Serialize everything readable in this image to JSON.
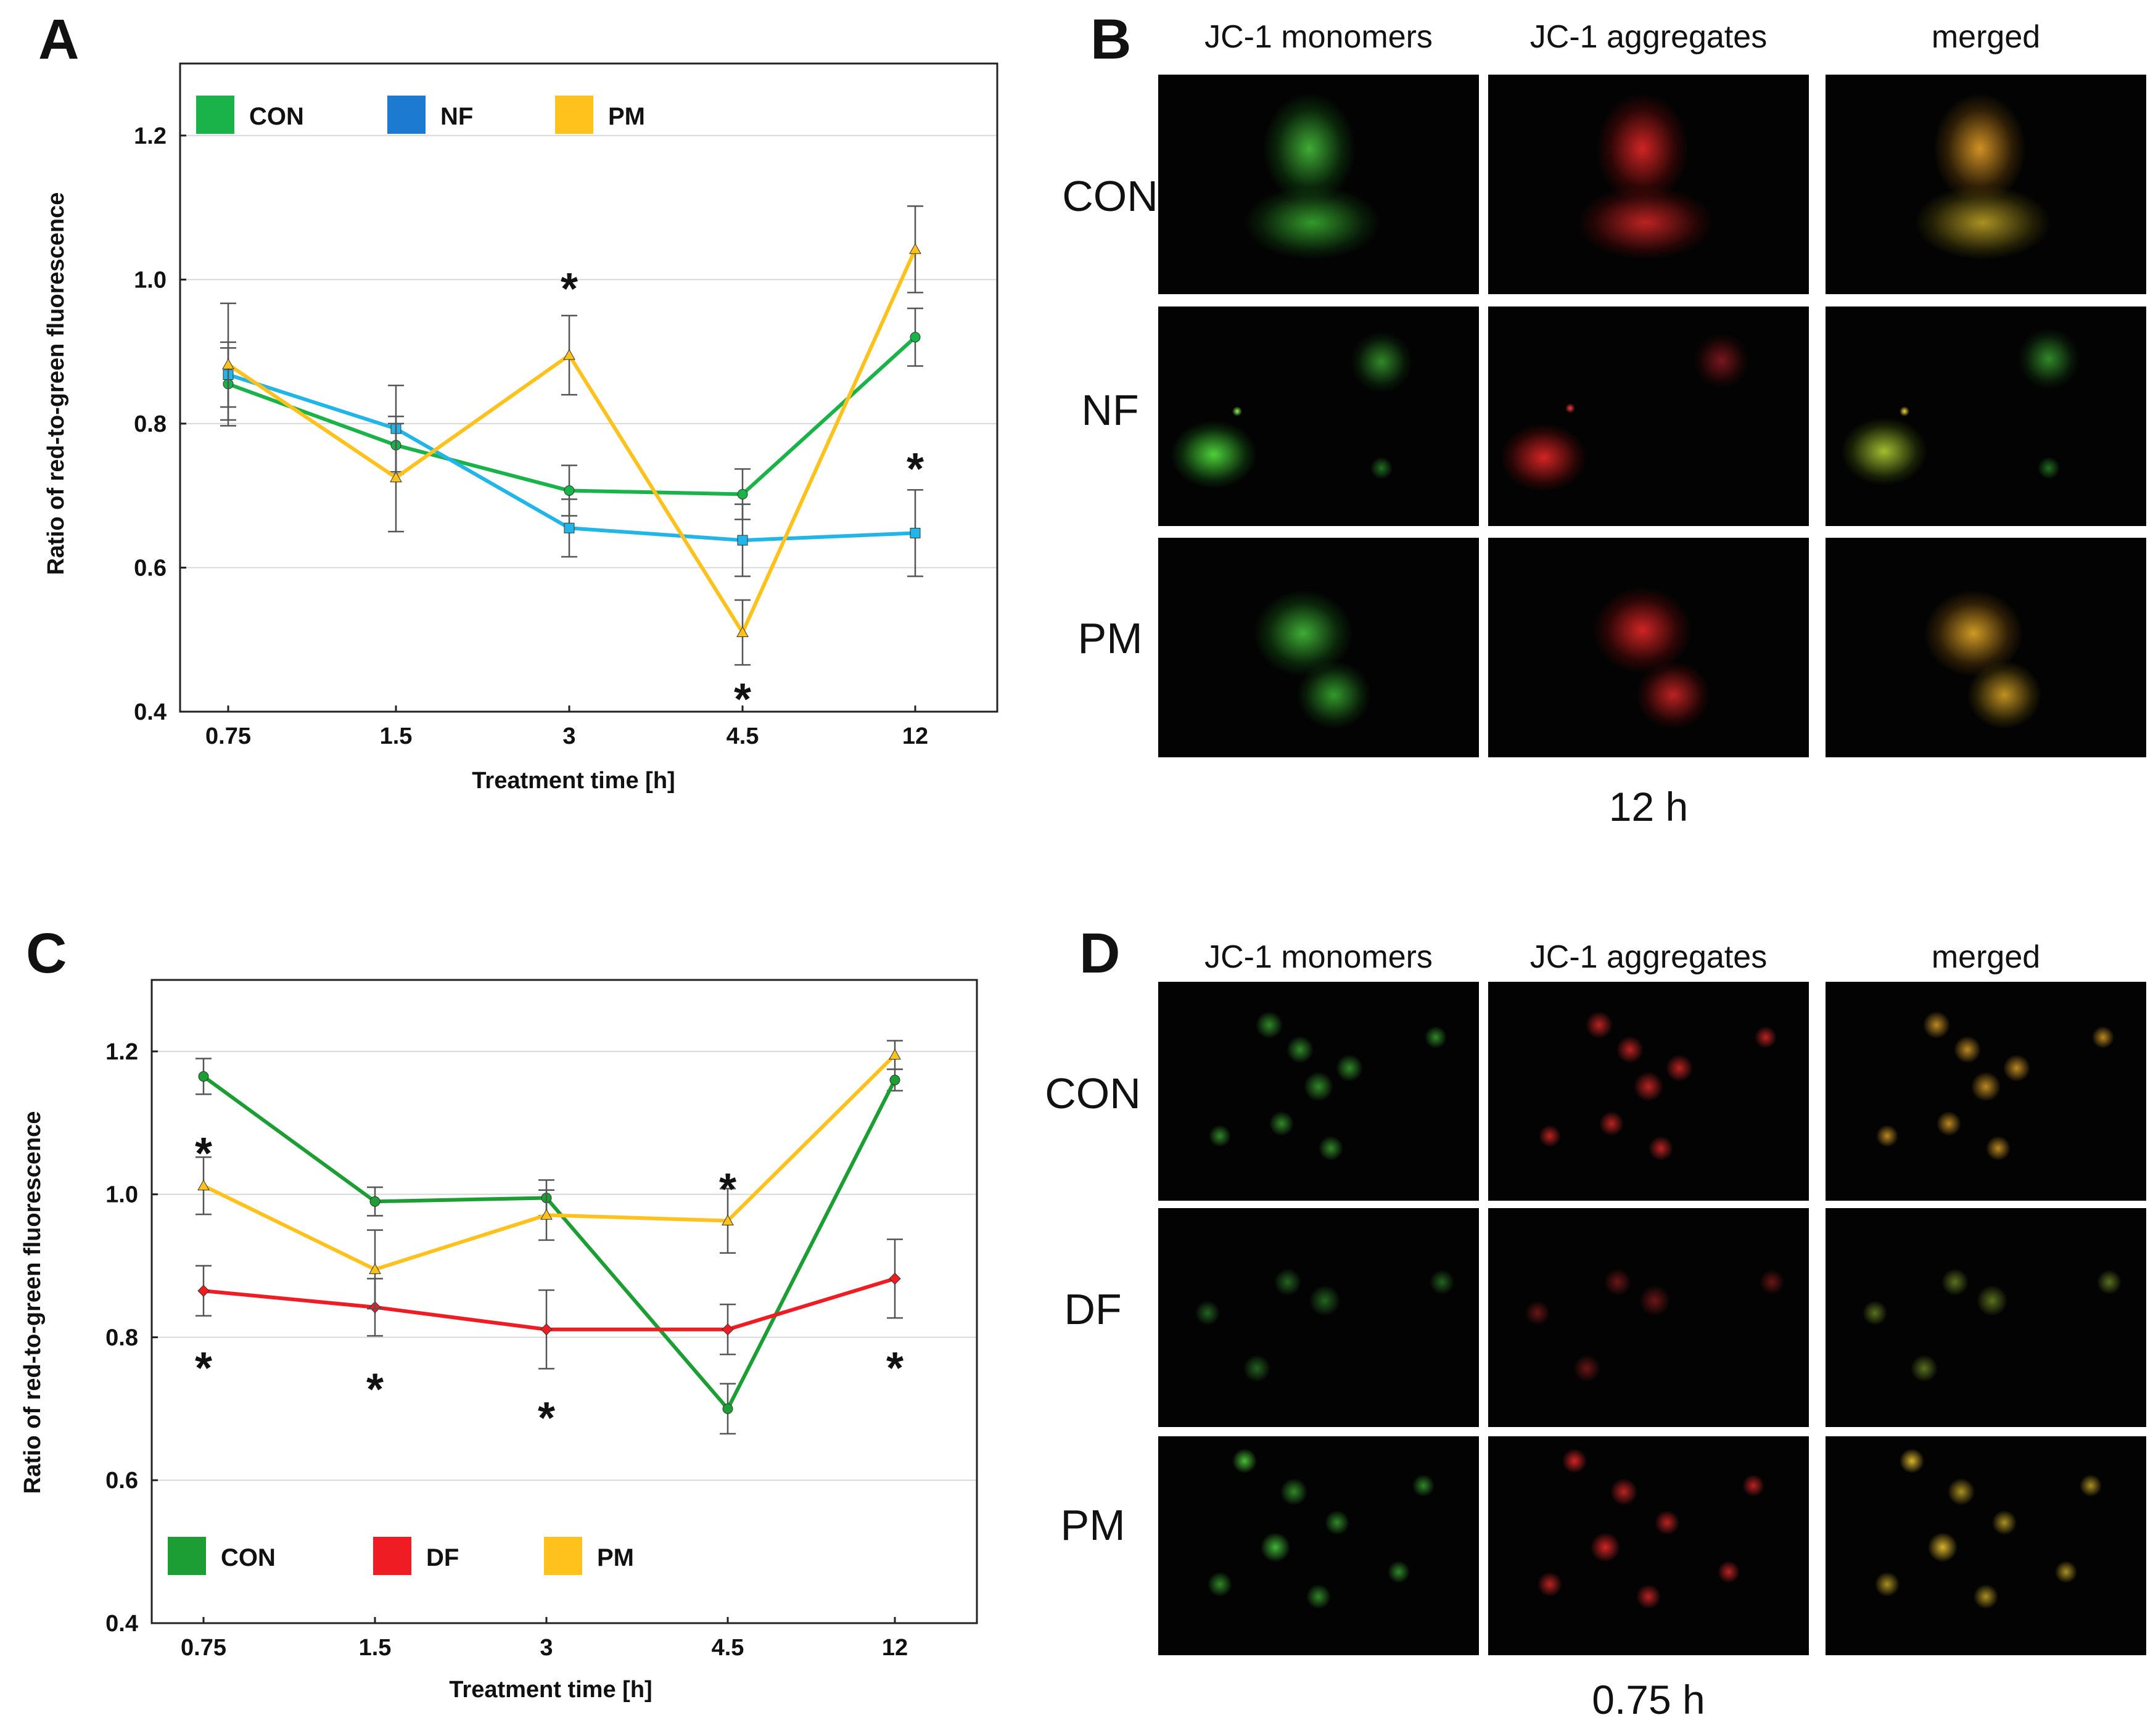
{
  "panels": {
    "A": {
      "letter": "A"
    },
    "B": {
      "letter": "B",
      "columns": [
        "JC-1 monomers",
        "JC-1 aggregates",
        "merged"
      ],
      "rows": [
        "CON",
        "NF",
        "PM"
      ],
      "time_label": "12 h"
    },
    "C": {
      "letter": "C"
    },
    "D": {
      "letter": "D",
      "columns": [
        "JC-1 monomers",
        "JC-1 aggregates",
        "merged"
      ],
      "rows": [
        "CON",
        "DF",
        "PM"
      ],
      "time_label": "0.75 h"
    }
  },
  "colors": {
    "CON": "#1ab34a",
    "NF": "#22b5e8",
    "NF_legend": "#1c7bd0",
    "PM": "#ffc21c",
    "DF": "#ef1c24",
    "C_CON": "#1d9e34",
    "error_bar": "#555555"
  },
  "chart_data": [
    {
      "panel": "A",
      "type": "line",
      "categories": [
        "0.75",
        "1.5",
        "3",
        "4.5",
        "12"
      ],
      "xlabel": "Treatment time [h]",
      "ylabel": "Ratio of red-to-green fluorescence",
      "ylim": [
        0.4,
        1.3
      ],
      "yticks": [
        "0.4",
        "0.6",
        "0.8",
        "1.0",
        "1.2"
      ],
      "grid": "horizontal",
      "legend": "top",
      "legend_items": [
        "CON",
        "NF",
        "PM"
      ],
      "series": [
        {
          "name": "CON",
          "values": [
            0.855,
            0.77,
            0.707,
            0.702,
            0.92
          ],
          "err": [
            0.05,
            0.04,
            0.035,
            0.035,
            0.04
          ]
        },
        {
          "name": "NF",
          "values": [
            0.868,
            0.793,
            0.655,
            0.638,
            0.648
          ],
          "err": [
            0.045,
            0.06,
            0.04,
            0.05,
            0.06
          ]
        },
        {
          "name": "PM",
          "values": [
            0.882,
            0.725,
            0.895,
            0.51,
            1.042
          ],
          "err": [
            0.085,
            0.075,
            0.055,
            0.045,
            0.06
          ]
        }
      ],
      "annotations": [
        {
          "text": "*",
          "x": "3",
          "y": 0.99
        },
        {
          "text": "*",
          "x": "4.5",
          "y": 0.42
        },
        {
          "text": "*",
          "x": "12",
          "y": 0.74
        }
      ]
    },
    {
      "panel": "C",
      "type": "line",
      "categories": [
        "0.75",
        "1.5",
        "3",
        "4.5",
        "12"
      ],
      "xlabel": "Treatment time [h]",
      "ylabel": "Ratio of red-to-green fluorescence",
      "ylim": [
        0.4,
        1.3
      ],
      "yticks": [
        "0.4",
        "0.6",
        "0.8",
        "1.0",
        "1.2"
      ],
      "grid": "horizontal",
      "legend": "bottom",
      "legend_items": [
        "CON",
        "DF",
        "PM"
      ],
      "series": [
        {
          "name": "CON",
          "values": [
            1.165,
            0.99,
            0.995,
            0.7,
            1.16
          ],
          "err": [
            0.025,
            0.02,
            0.025,
            0.035,
            0.015
          ]
        },
        {
          "name": "DF",
          "values": [
            0.865,
            0.842,
            0.811,
            0.811,
            0.882
          ],
          "err": [
            0.035,
            0.04,
            0.055,
            0.035,
            0.055
          ]
        },
        {
          "name": "PM",
          "values": [
            1.012,
            0.895,
            0.971,
            0.963,
            1.195
          ],
          "err": [
            0.04,
            0.055,
            0.035,
            0.045,
            0.02
          ]
        }
      ],
      "annotations": [
        {
          "text": "*",
          "x": "0.75",
          "y": 1.06
        },
        {
          "text": "*",
          "x": "0.75",
          "y": 0.76
        },
        {
          "text": "*",
          "x": "1.5",
          "y": 0.73
        },
        {
          "text": "*",
          "x": "3",
          "y": 0.69
        },
        {
          "text": "*",
          "x": "4.5",
          "y": 1.01
        },
        {
          "text": "*",
          "x": "12",
          "y": 0.76
        }
      ]
    }
  ]
}
